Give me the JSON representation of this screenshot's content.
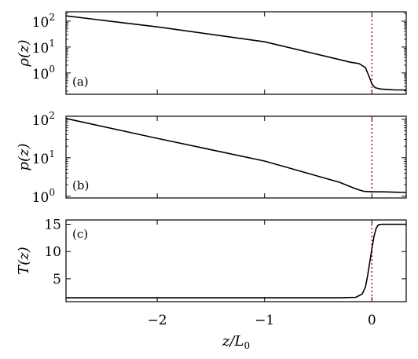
{
  "chart_data": [
    {
      "type": "line",
      "panel_label": "(a)",
      "ylabel": "ρ(z)",
      "yscale": "log",
      "xlim": [
        -2.85,
        0.32
      ],
      "ylim": [
        0.15,
        230
      ],
      "yticks": [
        1,
        10,
        100
      ],
      "ytick_labels": [
        "10",
        "10",
        "10"
      ],
      "ytick_exponents": [
        "0",
        "1",
        "2"
      ],
      "vline_x": 0,
      "vline_color": "#cc0000",
      "line_color": "#000000",
      "series": [
        {
          "x": [
            -2.85,
            -2.0,
            -1.0,
            -0.2,
            -0.12,
            -0.06,
            -0.03,
            0.0,
            0.03,
            0.08,
            0.15,
            0.22,
            0.32
          ],
          "y": [
            160,
            60,
            16,
            2.6,
            2.3,
            1.6,
            0.8,
            0.38,
            0.27,
            0.24,
            0.23,
            0.22,
            0.22
          ]
        }
      ]
    },
    {
      "type": "line",
      "panel_label": "(b)",
      "ylabel": "p(z)",
      "yscale": "log",
      "xlim": [
        -2.85,
        0.32
      ],
      "ylim": [
        0.9,
        120
      ],
      "yticks": [
        1,
        10,
        100
      ],
      "ytick_labels": [
        "10",
        "10",
        "10"
      ],
      "ytick_exponents": [
        "0",
        "1",
        "2"
      ],
      "vline_x": 0,
      "vline_color": "#cc0000",
      "line_color": "#000000",
      "series": [
        {
          "x": [
            -2.85,
            -2.0,
            -1.0,
            -0.3,
            -0.15,
            -0.08,
            0.0,
            0.1,
            0.32
          ],
          "y": [
            105,
            32,
            8.2,
            2.3,
            1.55,
            1.35,
            1.3,
            1.3,
            1.25
          ]
        }
      ]
    },
    {
      "type": "line",
      "panel_label": "(c)",
      "ylabel": "T(z)",
      "yscale": "linear",
      "xlim": [
        -2.85,
        0.32
      ],
      "ylim": [
        0.8,
        15.8
      ],
      "yticks": [
        5,
        10,
        15
      ],
      "ytick_labels": [
        "5",
        "10",
        "15"
      ],
      "xticks": [
        -2,
        -1,
        0
      ],
      "xtick_labels": [
        "−2",
        "−1",
        "0"
      ],
      "xlabel": "z/L0",
      "vline_x": 0,
      "vline_color": "#cc0000",
      "line_color": "#000000",
      "series": [
        {
          "x": [
            -2.85,
            -0.3,
            -0.15,
            -0.09,
            -0.06,
            -0.04,
            -0.02,
            0.0,
            0.02,
            0.04,
            0.06,
            0.09,
            0.15,
            0.32
          ],
          "y": [
            1.5,
            1.5,
            1.6,
            2.2,
            3.5,
            5.5,
            8.0,
            10.5,
            12.8,
            14.3,
            14.9,
            15.0,
            15.0,
            15.0
          ]
        }
      ]
    }
  ]
}
